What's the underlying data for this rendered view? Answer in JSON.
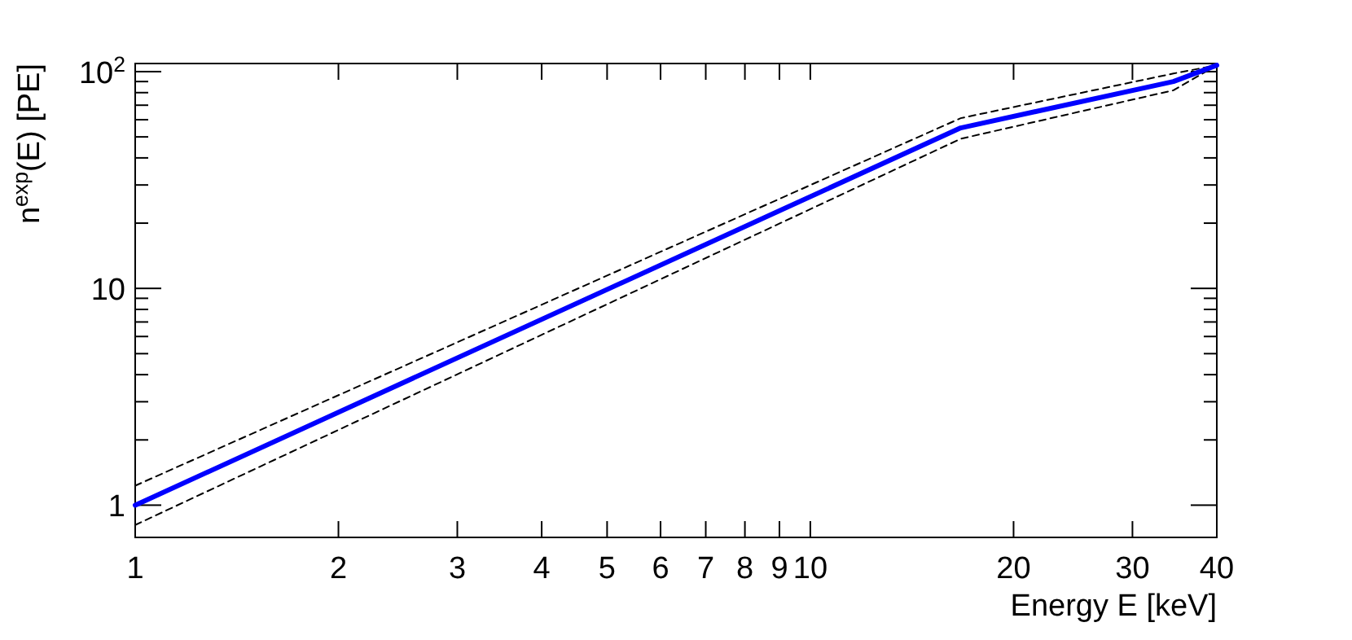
{
  "chart_data": {
    "type": "line",
    "xlabel": "Energy E [keV]",
    "ylabel": "n$^{exp}$(E) [PE]",
    "log": "xy",
    "grid": false,
    "marker": "none",
    "xlim": [
      1,
      40
    ],
    "ylim": [
      0.71,
      109
    ],
    "xticks": [
      1,
      2,
      3,
      4,
      5,
      6,
      7,
      8,
      9,
      10,
      20,
      30,
      40
    ],
    "yticks": [
      {
        "value": 1,
        "label": "1"
      },
      {
        "value": 2,
        "label": null
      },
      {
        "value": 3,
        "label": null
      },
      {
        "value": 4,
        "label": null
      },
      {
        "value": 5,
        "label": null
      },
      {
        "value": 6,
        "label": null
      },
      {
        "value": 7,
        "label": null
      },
      {
        "value": 8,
        "label": null
      },
      {
        "value": 9,
        "label": null
      },
      {
        "value": 10,
        "label": "10"
      },
      {
        "value": 20,
        "label": null
      },
      {
        "value": 30,
        "label": null
      },
      {
        "value": 40,
        "label": null
      },
      {
        "value": 50,
        "label": null
      },
      {
        "value": 60,
        "label": null
      },
      {
        "value": 70,
        "label": null
      },
      {
        "value": 80,
        "label": null
      },
      {
        "value": 90,
        "label": null
      },
      {
        "value": 100,
        "label": "10$^{2}$"
      }
    ],
    "series": [
      {
        "color": "#000000",
        "line_style": "dashed",
        "x": [
          1,
          16.7,
          34.5,
          40
        ],
        "values": [
          1.23,
          61,
          98,
          107
        ]
      },
      {
        "color": "#000000",
        "line_style": "dashed",
        "x": [
          1,
          16.7,
          34.5,
          40
        ],
        "values": [
          0.81,
          49,
          82,
          107
        ]
      },
      {
        "color": "#0000ff",
        "line_style": "solid",
        "x": [
          1,
          16.7,
          34.5,
          40
        ],
        "values": [
          1,
          55,
          90,
          107
        ]
      }
    ]
  }
}
